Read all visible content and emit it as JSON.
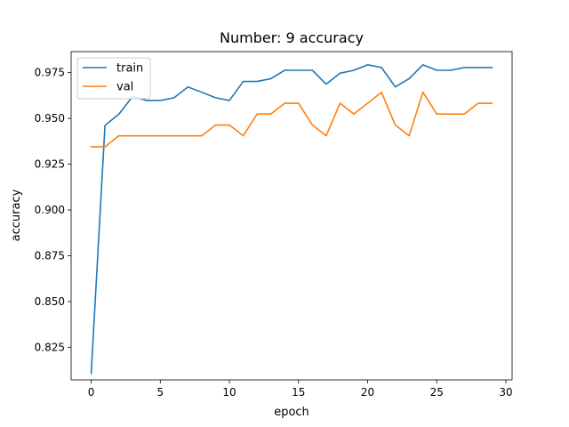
{
  "chart_data": {
    "type": "line",
    "title": "Number: 9 accuracy",
    "xlabel": "epoch",
    "ylabel": "accuracy",
    "xlim": [
      -1.45,
      30.45
    ],
    "ylim": [
      0.8072,
      0.9865
    ],
    "xticks": [
      0,
      5,
      10,
      15,
      20,
      25,
      30
    ],
    "xtick_labels": [
      "0",
      "5",
      "10",
      "15",
      "20",
      "25",
      "30"
    ],
    "yticks": [
      0.825,
      0.85,
      0.875,
      0.9,
      0.925,
      0.95,
      0.975
    ],
    "ytick_labels": [
      "0.825",
      "0.850",
      "0.875",
      "0.900",
      "0.925",
      "0.950",
      "0.975"
    ],
    "legend_position": "top-left",
    "grid": false,
    "x": [
      0,
      1,
      2,
      3,
      4,
      5,
      6,
      7,
      8,
      9,
      10,
      11,
      12,
      13,
      14,
      15,
      16,
      17,
      18,
      19,
      20,
      21,
      22,
      23,
      24,
      25,
      26,
      27,
      28,
      29
    ],
    "series": [
      {
        "name": "train",
        "color": "#1f77b4",
        "values": [
          0.8107,
          0.9462,
          0.9523,
          0.962,
          0.9598,
          0.9598,
          0.9613,
          0.9672,
          0.9643,
          0.9613,
          0.9598,
          0.9702,
          0.9702,
          0.9717,
          0.9763,
          0.9763,
          0.9763,
          0.9687,
          0.9747,
          0.9763,
          0.9793,
          0.9778,
          0.9672,
          0.9717,
          0.9793,
          0.9763,
          0.9763,
          0.9778,
          0.9778,
          0.9778
        ]
      },
      {
        "name": "val",
        "color": "#ff7f0e",
        "values": [
          0.9345,
          0.9345,
          0.9405,
          0.9405,
          0.9405,
          0.9405,
          0.9405,
          0.9405,
          0.9405,
          0.9464,
          0.9464,
          0.9405,
          0.9524,
          0.9524,
          0.9583,
          0.9583,
          0.9464,
          0.9405,
          0.9583,
          0.9524,
          0.9583,
          0.9643,
          0.9464,
          0.9405,
          0.9643,
          0.9524,
          0.9524,
          0.9524,
          0.9583,
          0.9583
        ]
      }
    ]
  }
}
